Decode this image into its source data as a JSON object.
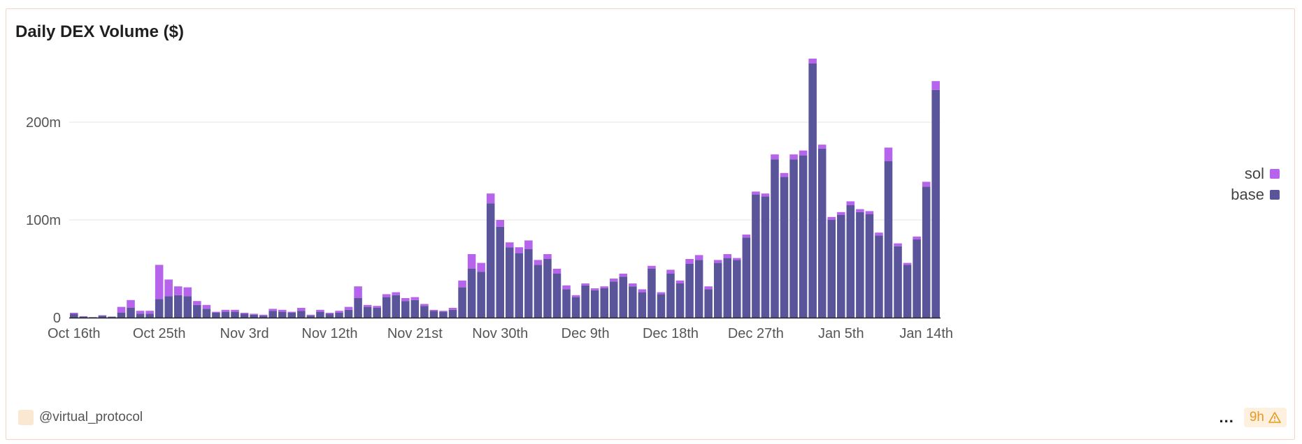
{
  "header": {
    "title": "Daily DEX Volume ($)"
  },
  "footer": {
    "author": "@virtual_protocol",
    "age_badge": "9h",
    "more_label": "..."
  },
  "colors": {
    "sol": "#b564eb",
    "base": "#5a559a",
    "grid": "#e6e6e6",
    "axis": "#222222"
  },
  "chart_data": {
    "type": "bar",
    "stacked": true,
    "title": "Daily DEX Volume ($)",
    "x_start": "Oct 16th",
    "x_end": "Jan 14th",
    "x_tick_labels": [
      "Oct 16th",
      "Oct 25th",
      "Nov 3rd",
      "Nov 12th",
      "Nov 21st",
      "Nov 30th",
      "Dec 9th",
      "Dec 18th",
      "Dec 27th",
      "Jan 5th",
      "Jan 14th"
    ],
    "y_tick_labels": [
      "0",
      "100m",
      "200m"
    ],
    "y_ticks": [
      0,
      100,
      200
    ],
    "ylim": [
      0,
      270
    ],
    "y_unit": "millions USD",
    "legend_position": "right",
    "series": [
      {
        "name": "base",
        "values": [
          4,
          1,
          0.5,
          2,
          1,
          5,
          10,
          4,
          4,
          19,
          22,
          23,
          22,
          13,
          9,
          5,
          6,
          6,
          4,
          3,
          2,
          7,
          6,
          5,
          7,
          2,
          6,
          4,
          5,
          8,
          20,
          11,
          10,
          21,
          23,
          17,
          18,
          12,
          7,
          6,
          8,
          31,
          50,
          47,
          117,
          93,
          72,
          66,
          70,
          54,
          60,
          45,
          29,
          21,
          33,
          28,
          30,
          37,
          42,
          32,
          26,
          50,
          24,
          45,
          35,
          55,
          59,
          29,
          56,
          61,
          59,
          82,
          126,
          124,
          162,
          144,
          162,
          166,
          260,
          173,
          100,
          105,
          115,
          108,
          106,
          84,
          160,
          73,
          54,
          80,
          134,
          233
        ]
      },
      {
        "name": "sol",
        "values": [
          1,
          0.5,
          0,
          0.5,
          0,
          6,
          8,
          3,
          3,
          35,
          17,
          9,
          9,
          4,
          4,
          1,
          2,
          2,
          1,
          1,
          1,
          2,
          2,
          1,
          3,
          1,
          2,
          1,
          2,
          3,
          12,
          2,
          2,
          3,
          3,
          3,
          3,
          2,
          1,
          1,
          2,
          7,
          15,
          9,
          10,
          7,
          5,
          6,
          9,
          5,
          5,
          5,
          4,
          2,
          2,
          2,
          2,
          3,
          3,
          3,
          3,
          3,
          2,
          4,
          3,
          5,
          5,
          3,
          3,
          4,
          2,
          3,
          3,
          3,
          5,
          4,
          5,
          5,
          5,
          4,
          3,
          3,
          4,
          3,
          3,
          3,
          14,
          3,
          2,
          3,
          5,
          9
        ]
      }
    ]
  }
}
